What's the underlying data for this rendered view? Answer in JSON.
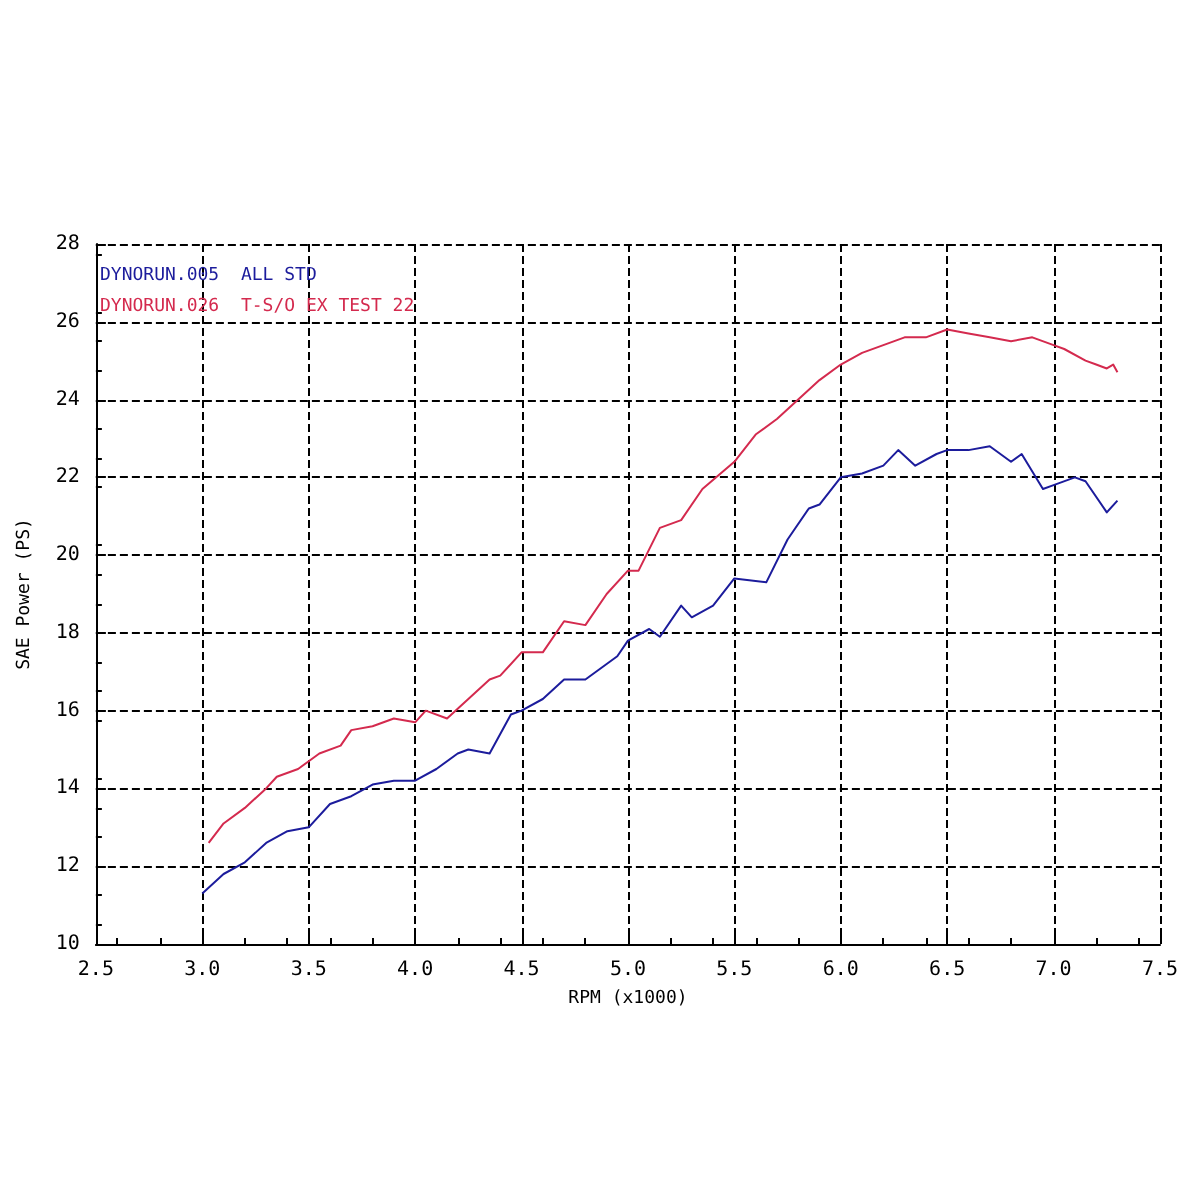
{
  "chart_data": {
    "type": "line",
    "xlabel": "RPM (x1000)",
    "ylabel": "SAE Power (PS)",
    "xlim": [
      2.5,
      7.5
    ],
    "xticks": [
      2.5,
      {
        "value": 3,
        "label": "3.0"
      },
      3.5,
      {
        "value": 4,
        "label": "4.0"
      },
      4.5,
      {
        "value": 5,
        "label": "5.0"
      },
      5.5,
      {
        "value": 6,
        "label": "6.0"
      },
      6.5,
      {
        "value": 7,
        "label": "7.0"
      },
      7.5
    ],
    "ylim": [
      10,
      28
    ],
    "yticks": [
      10,
      12,
      14,
      16,
      18,
      20,
      22,
      24,
      26,
      28
    ],
    "grid": true,
    "legend": "top left",
    "marker": "none",
    "line_style": "solid",
    "series": [
      {
        "name": "DYNORUN.005  ALL STD",
        "color": "#1c1c9c",
        "x": [
          3.0,
          3.1,
          3.2,
          3.3,
          3.4,
          3.5,
          3.6,
          3.7,
          3.8,
          3.9,
          4.0,
          4.1,
          4.2,
          4.25,
          4.35,
          4.45,
          4.5,
          4.6,
          4.7,
          4.8,
          4.9,
          4.95,
          5.0,
          5.1,
          5.15,
          5.25,
          5.3,
          5.4,
          5.5,
          5.65,
          5.75,
          5.85,
          5.9,
          6.0,
          6.1,
          6.2,
          6.27,
          6.35,
          6.45,
          6.5,
          6.6,
          6.7,
          6.8,
          6.85,
          6.95,
          7.0,
          7.1,
          7.15,
          7.25,
          7.3
        ],
        "values": [
          11.3,
          11.8,
          12.1,
          12.6,
          12.9,
          13.0,
          13.6,
          13.8,
          14.1,
          14.2,
          14.2,
          14.5,
          14.9,
          15.0,
          14.9,
          15.9,
          16.0,
          16.3,
          16.8,
          16.8,
          17.2,
          17.4,
          17.8,
          18.1,
          17.9,
          18.7,
          18.4,
          18.7,
          19.4,
          19.3,
          20.4,
          21.2,
          21.3,
          22.0,
          22.1,
          22.3,
          22.7,
          22.3,
          22.6,
          22.7,
          22.7,
          22.8,
          22.4,
          22.6,
          21.7,
          21.8,
          22.0,
          21.9,
          21.1,
          21.4
        ]
      },
      {
        "name": "DYNORUN.026  T-S/O EX TEST 22",
        "color": "#d42a4e",
        "x": [
          3.03,
          3.1,
          3.2,
          3.3,
          3.35,
          3.45,
          3.5,
          3.55,
          3.65,
          3.7,
          3.8,
          3.9,
          4.0,
          4.05,
          4.15,
          4.25,
          4.35,
          4.4,
          4.5,
          4.6,
          4.7,
          4.8,
          4.9,
          5.0,
          5.05,
          5.15,
          5.25,
          5.35,
          5.5,
          5.6,
          5.7,
          5.8,
          5.9,
          6.0,
          6.1,
          6.2,
          6.3,
          6.4,
          6.5,
          6.6,
          6.7,
          6.8,
          6.9,
          7.0,
          7.05,
          7.15,
          7.2,
          7.25,
          7.28,
          7.3
        ],
        "values": [
          12.6,
          13.1,
          13.5,
          14.0,
          14.3,
          14.5,
          14.7,
          14.9,
          15.1,
          15.5,
          15.6,
          15.8,
          15.7,
          16.0,
          15.8,
          16.3,
          16.8,
          16.9,
          17.5,
          17.5,
          18.3,
          18.2,
          19.0,
          19.6,
          19.6,
          20.7,
          20.9,
          21.7,
          22.4,
          23.1,
          23.5,
          24.0,
          24.5,
          24.9,
          25.2,
          25.4,
          25.6,
          25.6,
          25.8,
          25.7,
          25.6,
          25.5,
          25.6,
          25.4,
          25.3,
          25.0,
          24.9,
          24.8,
          24.9,
          24.7
        ]
      }
    ]
  }
}
